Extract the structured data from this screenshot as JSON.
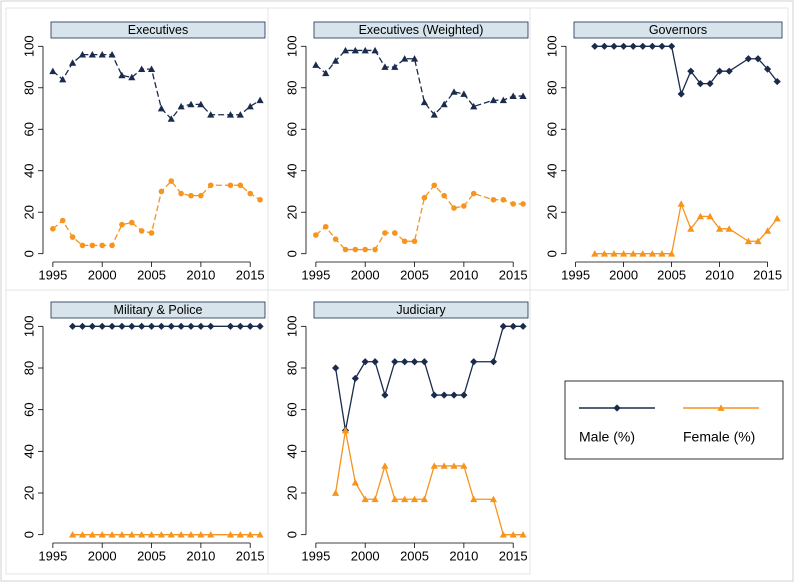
{
  "chart_data": [
    {
      "type": "line",
      "title": "Executives",
      "line_style": "dashed",
      "x": [
        1995,
        1996,
        1997,
        1998,
        1999,
        2000,
        2001,
        2002,
        2003,
        2004,
        2005,
        2006,
        2007,
        2008,
        2009,
        2010,
        2011,
        2013,
        2014,
        2015,
        2016
      ],
      "series": [
        {
          "color": "#1a2b4c",
          "marker": "triangle",
          "values": [
            88,
            84,
            92,
            96,
            96,
            96,
            96,
            86,
            85,
            89,
            89,
            70,
            65,
            71,
            72,
            72,
            67,
            67,
            67,
            71,
            74
          ]
        },
        {
          "color": "#f7941d",
          "marker": "circle",
          "values": [
            12,
            16,
            8,
            4,
            4,
            4,
            4,
            14,
            15,
            11,
            10,
            30,
            35,
            29,
            28,
            28,
            33,
            33,
            33,
            29,
            26
          ]
        }
      ],
      "xlim": [
        1994,
        2016.5
      ],
      "ylim": [
        -4,
        104
      ],
      "xticks": [
        1995,
        2000,
        2005,
        2010,
        2015
      ],
      "yticks": [
        0,
        20,
        40,
        60,
        80,
        100
      ]
    },
    {
      "type": "line",
      "title": "Executives (Weighted)",
      "line_style": "dashed",
      "x": [
        1995,
        1996,
        1997,
        1998,
        1999,
        2000,
        2001,
        2002,
        2003,
        2004,
        2005,
        2006,
        2007,
        2008,
        2009,
        2010,
        2011,
        2013,
        2014,
        2015,
        2016
      ],
      "series": [
        {
          "color": "#1a2b4c",
          "marker": "triangle",
          "values": [
            91,
            87,
            93,
            98,
            98,
            98,
            98,
            90,
            90,
            94,
            94,
            73,
            67,
            72,
            78,
            77,
            71,
            74,
            74,
            76,
            76
          ]
        },
        {
          "color": "#f7941d",
          "marker": "circle",
          "values": [
            9,
            13,
            7,
            2,
            2,
            2,
            2,
            10,
            10,
            6,
            6,
            27,
            33,
            28,
            22,
            23,
            29,
            26,
            26,
            24,
            24
          ]
        }
      ],
      "xlim": [
        1994,
        2016.5
      ],
      "ylim": [
        -4,
        104
      ],
      "xticks": [
        1995,
        2000,
        2005,
        2010,
        2015
      ],
      "yticks": [
        0,
        20,
        40,
        60,
        80,
        100
      ]
    },
    {
      "type": "line",
      "title": "Governors",
      "line_style": "solid",
      "x": [
        1997,
        1998,
        1999,
        2000,
        2001,
        2002,
        2003,
        2004,
        2005,
        2006,
        2007,
        2008,
        2009,
        2010,
        2011,
        2013,
        2014,
        2015,
        2016
      ],
      "series": [
        {
          "color": "#1a2b4c",
          "marker": "diamond",
          "values": [
            100,
            100,
            100,
            100,
            100,
            100,
            100,
            100,
            100,
            77,
            88,
            82,
            82,
            88,
            88,
            94,
            94,
            89,
            83
          ]
        },
        {
          "color": "#f7941d",
          "marker": "triangle",
          "values": [
            0,
            0,
            0,
            0,
            0,
            0,
            0,
            0,
            0,
            24,
            12,
            18,
            18,
            12,
            12,
            6,
            6,
            11,
            17
          ]
        }
      ],
      "xlim": [
        1994,
        2016.5
      ],
      "ylim": [
        -4,
        104
      ],
      "xticks": [
        1995,
        2000,
        2005,
        2010,
        2015
      ],
      "yticks": [
        0,
        20,
        40,
        60,
        80,
        100
      ]
    },
    {
      "type": "line",
      "title": "Military & Police",
      "line_style": "solid",
      "x": [
        1997,
        1998,
        1999,
        2000,
        2001,
        2002,
        2003,
        2004,
        2005,
        2006,
        2007,
        2008,
        2009,
        2010,
        2011,
        2013,
        2014,
        2015,
        2016
      ],
      "series": [
        {
          "color": "#1a2b4c",
          "marker": "diamond",
          "values": [
            100,
            100,
            100,
            100,
            100,
            100,
            100,
            100,
            100,
            100,
            100,
            100,
            100,
            100,
            100,
            100,
            100,
            100,
            100
          ]
        },
        {
          "color": "#f7941d",
          "marker": "triangle",
          "values": [
            0,
            0,
            0,
            0,
            0,
            0,
            0,
            0,
            0,
            0,
            0,
            0,
            0,
            0,
            0,
            0,
            0,
            0,
            0
          ]
        }
      ],
      "xlim": [
        1994,
        2016.5
      ],
      "ylim": [
        -4,
        104
      ],
      "xticks": [
        1995,
        2000,
        2005,
        2010,
        2015
      ],
      "yticks": [
        0,
        20,
        40,
        60,
        80,
        100
      ]
    },
    {
      "type": "line",
      "title": "Judiciary",
      "line_style": "solid",
      "x": [
        1997,
        1998,
        1999,
        2000,
        2001,
        2002,
        2003,
        2004,
        2005,
        2006,
        2007,
        2008,
        2009,
        2010,
        2011,
        2013,
        2014,
        2015,
        2016
      ],
      "series": [
        {
          "color": "#1a2b4c",
          "marker": "diamond",
          "values": [
            80,
            50,
            75,
            83,
            83,
            67,
            83,
            83,
            83,
            83,
            67,
            67,
            67,
            67,
            83,
            83,
            100,
            100,
            100
          ]
        },
        {
          "color": "#f7941d",
          "marker": "triangle",
          "values": [
            20,
            50,
            25,
            17,
            17,
            33,
            17,
            17,
            17,
            17,
            33,
            33,
            33,
            33,
            17,
            17,
            0,
            0,
            0
          ]
        }
      ],
      "xlim": [
        1994,
        2016.5
      ],
      "ylim": [
        -4,
        104
      ],
      "xticks": [
        1995,
        2000,
        2005,
        2010,
        2015
      ],
      "yticks": [
        0,
        20,
        40,
        60,
        80,
        100
      ]
    }
  ],
  "legend": [
    {
      "name": "Male (%)",
      "color": "#1a2b4c",
      "marker": "diamond"
    },
    {
      "name": "Female (%)",
      "color": "#f7941d",
      "marker": "triangle"
    }
  ]
}
